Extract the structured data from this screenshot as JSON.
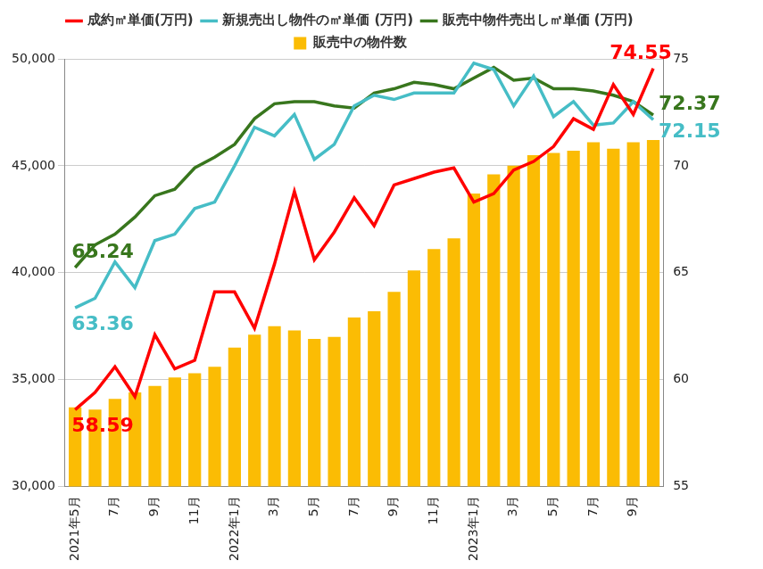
{
  "chart_data": {
    "type": "bar",
    "categories": [
      "2021年5月",
      null,
      "7月",
      null,
      "9月",
      null,
      "11月",
      null,
      "2022年1月",
      null,
      "3月",
      null,
      "5月",
      null,
      "7月",
      null,
      "9月",
      null,
      "11月",
      null,
      "2023年1月",
      null,
      "3月",
      null,
      "5月",
      null,
      "7月",
      null,
      "9月",
      null
    ],
    "series": [
      {
        "name": "販売中の物件数",
        "type": "bar",
        "color": "#fbbc04",
        "values": [
          33700,
          33600,
          34100,
          34400,
          34700,
          35100,
          35300,
          35600,
          36500,
          37100,
          37500,
          37300,
          36900,
          37000,
          37900,
          38200,
          39100,
          40100,
          41100,
          41600,
          43700,
          44600,
          45000,
          45500,
          45600,
          45700,
          46100,
          45800,
          46100,
          46200
        ]
      },
      {
        "name": "成約㎡単価(万円)",
        "type": "line",
        "axis": "y2",
        "color": "#ff0000",
        "data_labels": true,
        "values": [
          58.59,
          59.4,
          60.6,
          59.2,
          62.1,
          60.5,
          60.9,
          64.1,
          64.1,
          62.4,
          65.4,
          68.8,
          65.6,
          66.9,
          68.5,
          67.2,
          69.1,
          69.4,
          69.7,
          69.9,
          68.3,
          68.7,
          69.8,
          70.2,
          70.9,
          72.2,
          71.7,
          73.8,
          72.4,
          74.55
        ],
        "value_labels": [
          "58.59",
          null,
          null,
          null,
          null,
          null,
          null,
          null,
          null,
          null,
          null,
          null,
          null,
          null,
          null,
          null,
          null,
          null,
          null,
          null,
          null,
          null,
          null,
          null,
          null,
          null,
          null,
          null,
          null,
          "74.55"
        ]
      },
      {
        "name": "新規売出し物件の㎡単価 (万円)",
        "type": "line",
        "axis": "y2",
        "color": "#46bdc6",
        "data_labels": true,
        "values": [
          63.36,
          63.8,
          65.5,
          64.3,
          66.5,
          66.8,
          68.0,
          68.3,
          70.0,
          71.8,
          71.4,
          72.4,
          70.3,
          71.0,
          72.8,
          73.3,
          73.1,
          73.4,
          73.4,
          73.4,
          74.8,
          74.5,
          72.8,
          74.2,
          72.3,
          73.0,
          71.9,
          72.0,
          73.0,
          72.15
        ],
        "value_labels": [
          "63.36",
          null,
          null,
          null,
          null,
          null,
          null,
          null,
          null,
          null,
          null,
          null,
          null,
          null,
          null,
          null,
          null,
          null,
          null,
          null,
          null,
          null,
          null,
          null,
          null,
          null,
          null,
          null,
          null,
          "72.15"
        ]
      },
      {
        "name": "販売中物件売出し㎡単価 (万円)",
        "type": "line",
        "axis": "y2",
        "color": "#38761d",
        "data_labels": true,
        "values": [
          65.24,
          66.3,
          66.8,
          67.6,
          68.6,
          68.9,
          69.9,
          70.4,
          71.0,
          72.2,
          72.9,
          73.0,
          73.0,
          72.8,
          72.7,
          73.4,
          73.6,
          73.9,
          73.8,
          73.6,
          74.1,
          74.6,
          74.0,
          74.1,
          73.6,
          73.6,
          73.5,
          73.3,
          73.0,
          72.37
        ],
        "value_labels": [
          "65.24",
          null,
          null,
          null,
          null,
          null,
          null,
          null,
          null,
          null,
          null,
          null,
          null,
          null,
          null,
          null,
          null,
          null,
          null,
          null,
          null,
          null,
          null,
          null,
          null,
          null,
          null,
          null,
          null,
          "72.37"
        ]
      }
    ],
    "ylim": [
      30000,
      50000
    ],
    "yticks": [
      {
        "value": 30000,
        "label": "30,000"
      },
      {
        "value": 35000,
        "label": "35,000"
      },
      {
        "value": 40000,
        "label": "40,000"
      },
      {
        "value": 45000,
        "label": "45,000"
      },
      {
        "value": 50000,
        "label": "50,000"
      }
    ],
    "y2lim": [
      55,
      75
    ],
    "y2ticks": [
      55,
      60,
      65,
      70,
      75
    ],
    "grid": true,
    "legend": "top"
  }
}
